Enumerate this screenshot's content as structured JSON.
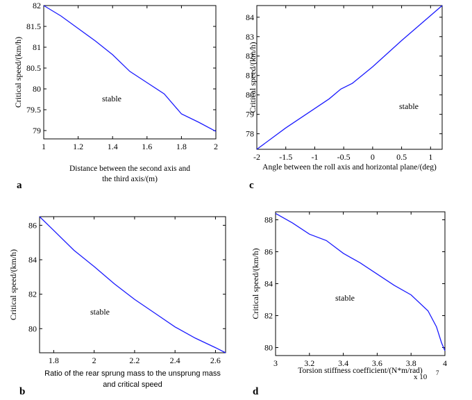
{
  "chart_data": [
    {
      "type": "line",
      "panel_letter": "a",
      "xlabel_lines": [
        "Distance between the second axis and",
        "the third axis/(m)"
      ],
      "ylabel": "Critical speed/(km/h)",
      "annotation": "stable",
      "xlim": [
        1,
        2
      ],
      "ylim": [
        78.8,
        82
      ],
      "xticks": [
        1,
        1.2,
        1.4,
        1.6,
        1.8,
        2
      ],
      "xtick_labels": [
        "1",
        "1.2",
        "1.4",
        "1.6",
        "1.8",
        "2"
      ],
      "yticks": [
        79,
        79.5,
        80,
        80.5,
        81,
        81.5,
        82
      ],
      "ytick_labels": [
        "79",
        "79.5",
        "80",
        "80.5",
        "81",
        "81.5",
        "82"
      ],
      "x": [
        1.0,
        1.1,
        1.2,
        1.3,
        1.4,
        1.5,
        1.6,
        1.7,
        1.8,
        1.9,
        2.0
      ],
      "y": [
        82.0,
        81.75,
        81.45,
        81.15,
        80.82,
        80.42,
        80.15,
        79.88,
        79.4,
        79.2,
        78.98
      ]
    },
    {
      "type": "line",
      "panel_letter": "c",
      "xlabel_lines": [
        "Angle between the roll axis and horizontal plane/(deg)"
      ],
      "ylabel": "Critical speed/(km/h)",
      "annotation": "stable",
      "xlim": [
        -2,
        1.2
      ],
      "ylim": [
        77.2,
        84.6
      ],
      "xticks": [
        -2,
        -1.5,
        -1,
        -0.5,
        0,
        0.5,
        1
      ],
      "xtick_labels": [
        "-2",
        "-1.5",
        "-1",
        "-0.5",
        "0",
        "0.5",
        "1"
      ],
      "yticks": [
        78,
        79,
        80,
        81,
        82,
        83,
        84
      ],
      "ytick_labels": [
        "78",
        "79",
        "80",
        "81",
        "82",
        "83",
        "84"
      ],
      "x": [
        -2.0,
        -1.5,
        -1.0,
        -0.75,
        -0.55,
        -0.35,
        0.0,
        0.5,
        1.2
      ],
      "y": [
        77.2,
        78.3,
        79.3,
        79.8,
        80.3,
        80.6,
        81.45,
        82.8,
        84.6
      ]
    },
    {
      "type": "line",
      "panel_letter": "b",
      "xlabel_lines": [
        "Ratio of the rear sprung mass to the unsprung mass",
        "and critical speed"
      ],
      "ylabel": "Critical speed/(km/h)",
      "annotation": "stable",
      "xlim": [
        1.73,
        2.65
      ],
      "ylim": [
        78.6,
        86.5
      ],
      "xticks": [
        1.8,
        2,
        2.2,
        2.4,
        2.6
      ],
      "xtick_labels": [
        "1.8",
        "2",
        "2.2",
        "2.4",
        "2.6"
      ],
      "yticks": [
        80,
        82,
        84,
        86
      ],
      "ytick_labels": [
        "80",
        "82",
        "84",
        "86"
      ],
      "x": [
        1.73,
        1.8,
        1.9,
        2.0,
        2.1,
        2.2,
        2.3,
        2.4,
        2.5,
        2.6,
        2.65
      ],
      "y": [
        86.5,
        85.7,
        84.55,
        83.6,
        82.6,
        81.7,
        80.9,
        80.1,
        79.45,
        78.9,
        78.6
      ]
    },
    {
      "type": "line",
      "panel_letter": "d",
      "xlabel_lines": [
        "Torsion stiffness coefficient/(N*m/rad)"
      ],
      "x_multiplier": "x 10",
      "x_multiplier_exp": "7",
      "ylabel": "Critical speed/(km/h)",
      "annotation": "stable",
      "xlim": [
        3,
        4
      ],
      "ylim": [
        79.5,
        88.5
      ],
      "xticks": [
        3,
        3.2,
        3.4,
        3.6,
        3.8,
        4
      ],
      "xtick_labels": [
        "3",
        "3.2",
        "3.4",
        "3.6",
        "3.8",
        "4"
      ],
      "yticks": [
        80,
        82,
        84,
        86,
        88
      ],
      "ytick_labels": [
        "80",
        "82",
        "84",
        "86",
        "88"
      ],
      "x": [
        3.0,
        3.1,
        3.2,
        3.3,
        3.4,
        3.5,
        3.6,
        3.7,
        3.8,
        3.9,
        3.95,
        3.98,
        4.0
      ],
      "y": [
        88.4,
        87.8,
        87.1,
        86.7,
        85.9,
        85.3,
        84.6,
        83.9,
        83.3,
        82.3,
        81.3,
        80.3,
        79.8
      ]
    }
  ]
}
